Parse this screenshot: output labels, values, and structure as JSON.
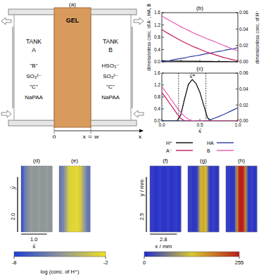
{
  "schematic": {
    "label": "(a)",
    "gel": "GEL",
    "tanks": [
      {
        "title": "TANK",
        "name": "A",
        "contents": [
          "\"B\"",
          "SO₃²⁻",
          "\"C\"",
          "NaPAA"
        ]
      },
      {
        "title": "TANK",
        "name": "B",
        "contents": [
          "HSO₃⁻",
          "SO₃²⁻",
          "\"C\"",
          "NaPAA"
        ]
      }
    ],
    "axis": {
      "label": "x",
      "ticks": [
        "0",
        "x = w"
      ]
    }
  },
  "chart_data": [
    {
      "type": "line",
      "label": "(b)",
      "x": [
        0,
        0.05,
        0.1,
        0.15,
        0.2,
        0.25,
        0.3,
        0.35,
        0.4,
        0.45,
        0.5,
        0.55,
        0.6,
        0.65,
        0.7,
        0.75,
        0.8,
        0.85,
        0.9,
        0.95,
        1.0
      ],
      "xlim": [
        0,
        1
      ],
      "xticks": [
        0,
        0.25,
        0.5,
        0.75,
        1
      ],
      "ylim": [
        0,
        1.6
      ],
      "yticks": [
        {
          "value": 0,
          "label": "0.0"
        },
        0.4,
        0.8,
        1.2,
        1.6
      ],
      "y2lim": [
        0,
        0.06
      ],
      "y2ticks": [
        {
          "value": 0,
          "label": "0.00"
        },
        0.02,
        0.04,
        0.06
      ],
      "ylabel": "dimensionless conc. of A⁻, HA, B",
      "y2label": "dimensionless conc. of H⁺",
      "tick_labels": "y",
      "series": [
        {
          "name": "H⁺",
          "color": "#000000",
          "axis": "y2",
          "values": [
            0.0012,
            0.0011,
            0.001,
            0.001,
            0.0009,
            0.0009,
            0.0008,
            0.0008,
            0.0007,
            0.0007,
            0.0006,
            0.0006,
            0.0005,
            0.0005,
            0.0004,
            0.0004,
            0.0003,
            0.0003,
            0.0002,
            0.0002,
            0.0001
          ]
        },
        {
          "name": "HA",
          "color": "#2b3a9e",
          "values": [
            0,
            0.02,
            0.04,
            0.07,
            0.09,
            0.11,
            0.13,
            0.16,
            0.18,
            0.2,
            0.22,
            0.25,
            0.27,
            0.29,
            0.32,
            0.34,
            0.36,
            0.39,
            0.41,
            0.43,
            0.46
          ]
        },
        {
          "name": "A⁻",
          "color": "#c2185b",
          "values": [
            1.05,
            0.97,
            0.9,
            0.83,
            0.76,
            0.69,
            0.63,
            0.57,
            0.51,
            0.46,
            0.41,
            0.36,
            0.31,
            0.27,
            0.23,
            0.19,
            0.15,
            0.12,
            0.09,
            0.06,
            0.04
          ]
        },
        {
          "name": "B",
          "color": "#e65ab4",
          "values": [
            1.5,
            1.42,
            1.35,
            1.28,
            1.21,
            1.14,
            1.08,
            1.02,
            0.96,
            0.9,
            0.85,
            0.8,
            0.75,
            0.7,
            0.65,
            0.6,
            0.55,
            0.5,
            0.45,
            0.4,
            0.36
          ]
        }
      ]
    },
    {
      "type": "line",
      "label": "(c)",
      "x": [
        0,
        0.05,
        0.1,
        0.15,
        0.2,
        0.25,
        0.3,
        0.35,
        0.4,
        0.45,
        0.5,
        0.55,
        0.6,
        0.65,
        0.7,
        0.75,
        0.8,
        0.85,
        0.9,
        0.95,
        1.0
      ],
      "xlim": [
        0,
        1
      ],
      "xticks": [
        {
          "value": 0,
          "label": "0.0"
        },
        0.5,
        {
          "value": 1,
          "label": "1.0"
        }
      ],
      "xlabel": "x̄",
      "ylim": [
        0,
        1.6
      ],
      "yticks": [
        {
          "value": 0,
          "label": "0.0"
        },
        0.4,
        0.8,
        1.2,
        1.6
      ],
      "y2lim": [
        0,
        0.06
      ],
      "y2ticks": [
        {
          "value": 0,
          "label": "0.00"
        },
        0.02,
        0.04,
        0.06
      ],
      "vlines": [
        0.22,
        0.58
      ],
      "annotations": [
        {
          "text": "x̄*",
          "x": 0.4,
          "y": 0.054,
          "axis": "y2"
        }
      ],
      "series": [
        {
          "name": "H⁺",
          "color": "#000000",
          "axis": "y2",
          "values": [
            0,
            0,
            0,
            0,
            0,
            0.008,
            0.028,
            0.046,
            0.052,
            0.047,
            0.036,
            0.02,
            0.004,
            0,
            0,
            0,
            0,
            0,
            0,
            0,
            0
          ]
        },
        {
          "name": "HA",
          "color": "#2b3a9e",
          "values": [
            0,
            0,
            0,
            0,
            0,
            0,
            0,
            0,
            0,
            0,
            0,
            0,
            0.01,
            0.05,
            0.1,
            0.15,
            0.2,
            0.26,
            0.32,
            0.38,
            0.44
          ]
        },
        {
          "name": "A⁻",
          "color": "#c2185b",
          "values": [
            0.95,
            0.78,
            0.6,
            0.42,
            0.24,
            0.08,
            0,
            0,
            0,
            0,
            0,
            0,
            0,
            0,
            0,
            0,
            0,
            0,
            0,
            0,
            0
          ]
        },
        {
          "name": "B",
          "color": "#e65ab4",
          "values": [
            1.15,
            0.98,
            0.8,
            0.62,
            0.44,
            0.28,
            0.15,
            0.06,
            0.01,
            0,
            0,
            0,
            0,
            0,
            0,
            0,
            0,
            0,
            0,
            0,
            0
          ]
        }
      ]
    }
  ],
  "maps": {
    "groups": [
      {
        "xlim": [
          0,
          1.2
        ],
        "ylim": [
          0,
          2.4
        ],
        "scale_x": {
          "value": 1.0,
          "label": "1.0",
          "axis_label": "x̄"
        },
        "scale_y": {
          "value": 2.0,
          "label": "2.0",
          "axis_label": "ȳ"
        },
        "colorbar": {
          "range": [
            -8,
            -2
          ],
          "ticks": [
            -8,
            -2
          ],
          "label": "log (conc. of H⁺)"
        },
        "panels": [
          {
            "label": "(d)",
            "values": [
              -7.6,
              -6.8,
              -6.0,
              -5.5,
              -5.2,
              -5.0,
              -4.9,
              -4.9,
              -4.9,
              -4.9,
              -4.9,
              -4.9,
              -4.9,
              -4.9,
              -4.9,
              -4.9,
              -4.9,
              -4.9,
              -4.9,
              -4.9
            ]
          },
          {
            "label": "(e)",
            "values": [
              -6.2,
              -6.0,
              -5.6,
              -5.0,
              -4.2,
              -3.4,
              -2.8,
              -2.5,
              -2.4,
              -2.4,
              -2.4,
              -2.4,
              -2.5,
              -2.8,
              -3.4,
              -4.2,
              -5.0,
              -5.6,
              -6.0,
              -6.2
            ]
          }
        ]
      },
      {
        "xlim": [
          0,
          3.2
        ],
        "ylim": [
          0,
          3.0
        ],
        "scale_x": {
          "value": 2.8,
          "label": "2.8",
          "axis_label": "x / mm"
        },
        "scale_y": {
          "value": 2.5,
          "label": "2.5",
          "axis_label": "y / mm"
        },
        "colorbar": {
          "range": [
            0,
            255
          ],
          "ticks": [
            0,
            255
          ]
        },
        "panels": [
          {
            "label": "(f)",
            "values": [
              8,
              8,
              8,
              8,
              8,
              8,
              8,
              8,
              8,
              8,
              8,
              8,
              8,
              8,
              8,
              8,
              8,
              8,
              8,
              8
            ]
          },
          {
            "label": "(g)",
            "values": [
              10,
              10,
              10,
              10,
              10,
              12,
              30,
              90,
              140,
              150,
              150,
              140,
              90,
              30,
              12,
              10,
              10,
              10,
              10,
              10
            ]
          },
          {
            "label": "(h)",
            "values": [
              10,
              10,
              10,
              10,
              10,
              14,
              60,
              180,
              245,
              255,
              255,
              245,
              180,
              60,
              14,
              10,
              10,
              10,
              10,
              10
            ]
          }
        ]
      }
    ]
  }
}
